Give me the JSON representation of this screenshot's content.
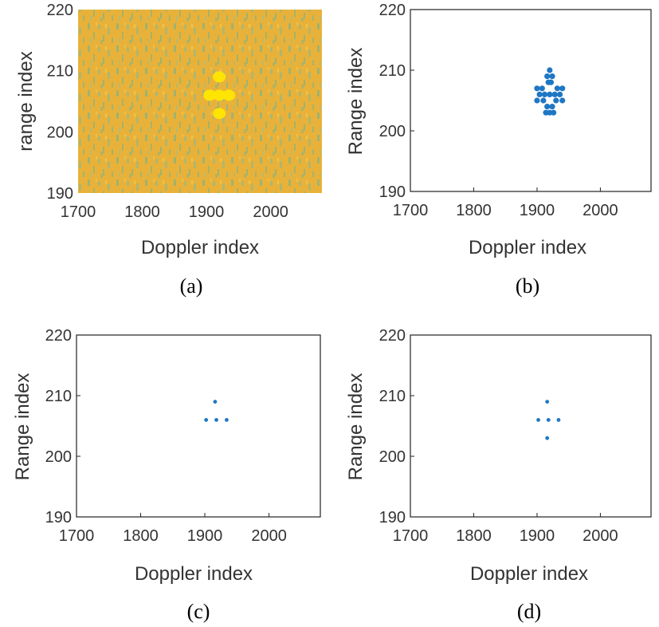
{
  "colors": {
    "heatmap_background": "#e8b23a",
    "heatmap_noise": "#8fb37a",
    "heatmap_target": "#ffe600",
    "scatter_points": "#1f77c4",
    "axes": "#222222",
    "tick_text": "#333333"
  },
  "chart_data": [
    {
      "type": "heatmap",
      "caption": "(a)",
      "xlabel": "Doppler index",
      "ylabel": "range index",
      "xlim": [
        1700,
        2080
      ],
      "ylim": [
        190,
        220
      ],
      "xticks": [
        1700,
        1800,
        1900,
        2000
      ],
      "yticks": [
        190,
        200,
        210,
        220
      ],
      "grid": false,
      "target_cells": [
        {
          "x": 1905,
          "y": 206
        },
        {
          "x": 1920,
          "y": 206
        },
        {
          "x": 1935,
          "y": 206
        },
        {
          "x": 1920,
          "y": 209
        },
        {
          "x": 1920,
          "y": 203
        }
      ]
    },
    {
      "type": "scatter",
      "caption": "(b)",
      "xlabel": "Doppler index",
      "ylabel": "Range index",
      "xlim": [
        1700,
        2080
      ],
      "ylim": [
        190,
        220
      ],
      "xticks": [
        1700,
        1800,
        1900,
        2000
      ],
      "yticks": [
        190,
        200,
        210,
        220
      ],
      "grid": false,
      "points": [
        {
          "x": 1920,
          "y": 210
        },
        {
          "x": 1916,
          "y": 209
        },
        {
          "x": 1924,
          "y": 209
        },
        {
          "x": 1918,
          "y": 208
        },
        {
          "x": 1922,
          "y": 208
        },
        {
          "x": 1900,
          "y": 207
        },
        {
          "x": 1908,
          "y": 207
        },
        {
          "x": 1932,
          "y": 207
        },
        {
          "x": 1940,
          "y": 207
        },
        {
          "x": 1904,
          "y": 206
        },
        {
          "x": 1912,
          "y": 206
        },
        {
          "x": 1920,
          "y": 206
        },
        {
          "x": 1928,
          "y": 206
        },
        {
          "x": 1936,
          "y": 206
        },
        {
          "x": 1900,
          "y": 205
        },
        {
          "x": 1910,
          "y": 205
        },
        {
          "x": 1930,
          "y": 205
        },
        {
          "x": 1940,
          "y": 205
        },
        {
          "x": 1916,
          "y": 204
        },
        {
          "x": 1924,
          "y": 204
        },
        {
          "x": 1914,
          "y": 203
        },
        {
          "x": 1920,
          "y": 203
        },
        {
          "x": 1926,
          "y": 203
        }
      ]
    },
    {
      "type": "scatter",
      "caption": "(c)",
      "xlabel": "Doppler index",
      "ylabel": "Range index",
      "xlim": [
        1700,
        2080
      ],
      "ylim": [
        190,
        220
      ],
      "xticks": [
        1700,
        1800,
        1900,
        2000
      ],
      "yticks": [
        190,
        200,
        210,
        220
      ],
      "grid": false,
      "points": [
        {
          "x": 1916,
          "y": 209
        },
        {
          "x": 1902,
          "y": 206
        },
        {
          "x": 1918,
          "y": 206
        },
        {
          "x": 1934,
          "y": 206
        }
      ]
    },
    {
      "type": "scatter",
      "caption": "(d)",
      "xlabel": "Doppler index",
      "ylabel": "Range index",
      "xlim": [
        1700,
        2080
      ],
      "ylim": [
        190,
        220
      ],
      "xticks": [
        1700,
        1800,
        1900,
        2000
      ],
      "yticks": [
        190,
        200,
        210,
        220
      ],
      "grid": false,
      "points": [
        {
          "x": 1916,
          "y": 209
        },
        {
          "x": 1902,
          "y": 206
        },
        {
          "x": 1918,
          "y": 206
        },
        {
          "x": 1934,
          "y": 206
        },
        {
          "x": 1916,
          "y": 203
        }
      ]
    }
  ]
}
